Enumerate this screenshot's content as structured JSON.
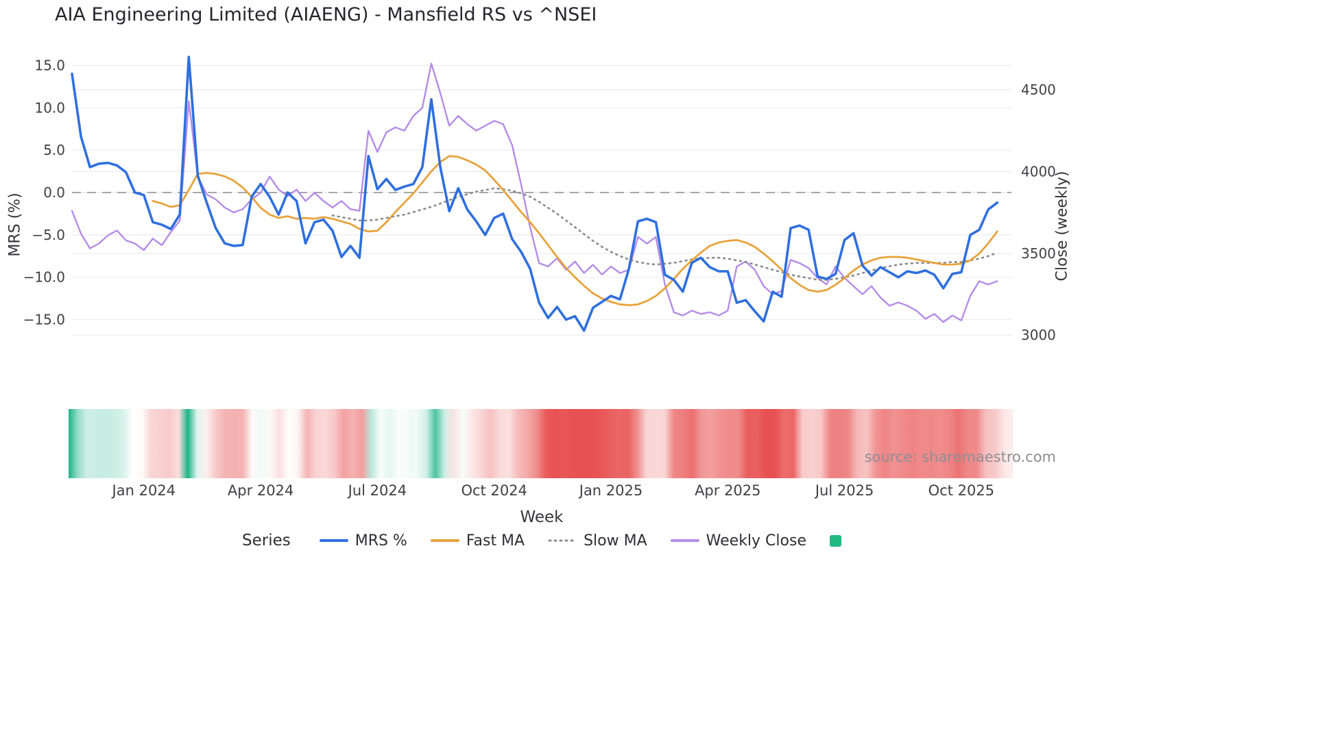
{
  "title": "AIA Engineering Limited (AIAENG) - Mansfield RS vs ^NSEI",
  "source": "source: sharemaestro.com",
  "legend": {
    "title": "Series",
    "items": [
      {
        "label": "MRS %",
        "swatch": "line",
        "color": "#2f6fdf"
      },
      {
        "label": "Fast MA",
        "swatch": "line",
        "color": "#e8a23b"
      },
      {
        "label": "Slow MA",
        "swatch": "dotted-line",
        "color": "#8a8a8a"
      },
      {
        "label": "Weekly Close",
        "swatch": "line",
        "color": "#b48ce8"
      },
      {
        "label": "",
        "swatch": "square",
        "color": "#22b884"
      }
    ]
  },
  "chart_data": {
    "type": "line",
    "title": "AIA Engineering Limited (AIAENG) - Mansfield RS vs ^NSEI",
    "x_axis": {
      "label": "Week",
      "num_points": 104,
      "ticks": [
        {
          "index": 8,
          "label": "Jan 2024"
        },
        {
          "index": 21,
          "label": "Apr 2024"
        },
        {
          "index": 34,
          "label": "Jul 2024"
        },
        {
          "index": 47,
          "label": "Oct 2024"
        },
        {
          "index": 60,
          "label": "Jan 2025"
        },
        {
          "index": 73,
          "label": "Apr 2025"
        },
        {
          "index": 86,
          "label": "Jul 2025"
        },
        {
          "index": 99,
          "label": "Oct 2025"
        }
      ]
    },
    "y_left": {
      "label": "MRS (%)",
      "range": [
        -17.5,
        17.0
      ],
      "ticks": [
        {
          "value": 15,
          "label": "15.0"
        },
        {
          "value": 10,
          "label": "10.0"
        },
        {
          "value": 5,
          "label": "5.0"
        },
        {
          "value": 0,
          "label": "0.0"
        },
        {
          "value": -5,
          "label": "−5.0"
        },
        {
          "value": -10,
          "label": "−10.0"
        },
        {
          "value": -15,
          "label": "−15.0"
        }
      ]
    },
    "y_right": {
      "label": "Close (weekly)",
      "range": [
        2950,
        4700
      ],
      "ticks": [
        {
          "value": 4500,
          "label": "4500"
        },
        {
          "value": 4000,
          "label": "4000"
        },
        {
          "value": 3500,
          "label": "3500"
        },
        {
          "value": 3000,
          "label": "3000"
        }
      ]
    },
    "zero_line": {
      "value": 0,
      "style": "dashed",
      "color": "#9b9ba1"
    },
    "grid": {
      "on": true,
      "color": "#ebebf1"
    },
    "legend_position": "bottom",
    "series": [
      {
        "name": "MRS %",
        "axis": "left",
        "color": "#2f6fdf",
        "style": "solid",
        "values": [
          14.0,
          6.6,
          3.0,
          3.4,
          3.5,
          3.2,
          2.4,
          0.0,
          -0.3,
          -3.5,
          -3.8,
          -4.3,
          -2.6,
          16.0,
          2.0,
          -1.2,
          -4.2,
          -6.0,
          -6.3,
          -6.2,
          -0.5,
          1.0,
          -0.5,
          -2.6,
          0.0,
          -1.0,
          -6.0,
          -3.5,
          -3.2,
          -4.5,
          -7.6,
          -6.3,
          -7.7,
          4.3,
          0.4,
          1.6,
          0.3,
          0.7,
          1.0,
          3.0,
          11.0,
          3.0,
          -2.2,
          0.5,
          -2.0,
          -3.4,
          -5.0,
          -3.0,
          -2.5,
          -5.5,
          -7.0,
          -9.0,
          -13.0,
          -14.8,
          -13.5,
          -15.0,
          -14.6,
          -16.3,
          -13.6,
          -12.9,
          -12.2,
          -12.6,
          -9.0,
          -3.4,
          -3.1,
          -3.5,
          -9.7,
          -10.3,
          -11.7,
          -8.3,
          -7.7,
          -8.8,
          -9.3,
          -9.3,
          -13.0,
          -12.7,
          -14.0,
          -15.2,
          -11.7,
          -12.3,
          -4.2,
          -3.9,
          -4.4,
          -9.9,
          -10.2,
          -9.6,
          -5.6,
          -4.8,
          -8.6,
          -9.8,
          -8.8,
          -9.4,
          -10.0,
          -9.3,
          -9.5,
          -9.2,
          -9.7,
          -11.3,
          -9.6,
          -9.4,
          -5.0,
          -4.4,
          -2.0,
          -1.2
        ]
      },
      {
        "name": "Fast MA",
        "axis": "left",
        "color": "#e8a23b",
        "style": "solid",
        "values": [
          null,
          null,
          null,
          null,
          null,
          null,
          null,
          null,
          null,
          -1.0,
          -1.3,
          -1.7,
          -1.5,
          0.3,
          2.2,
          2.3,
          2.2,
          1.9,
          1.4,
          0.6,
          -0.5,
          -1.8,
          -2.6,
          -3.0,
          -2.8,
          -3.1,
          -3.0,
          -3.1,
          -2.9,
          -3.1,
          -3.4,
          -3.7,
          -4.3,
          -4.6,
          -4.5,
          -3.5,
          -2.3,
          -1.2,
          -0.1,
          1.2,
          2.5,
          3.6,
          4.3,
          4.2,
          3.8,
          3.3,
          2.6,
          1.5,
          0.3,
          -1.0,
          -2.3,
          -3.5,
          -4.8,
          -6.2,
          -7.6,
          -8.9,
          -10.0,
          -11.0,
          -11.9,
          -12.5,
          -12.9,
          -13.2,
          -13.3,
          -13.2,
          -12.8,
          -12.2,
          -11.3,
          -10.2,
          -9.0,
          -8.0,
          -7.1,
          -6.3,
          -5.9,
          -5.7,
          -5.6,
          -5.9,
          -6.4,
          -7.2,
          -8.1,
          -9.1,
          -10.1,
          -10.9,
          -11.5,
          -11.7,
          -11.5,
          -10.9,
          -10.1,
          -9.2,
          -8.5,
          -8.0,
          -7.7,
          -7.6,
          -7.6,
          -7.7,
          -7.9,
          -8.1,
          -8.3,
          -8.5,
          -8.5,
          -8.4,
          -8.0,
          -7.2,
          -6.0,
          -4.6
        ]
      },
      {
        "name": "Slow MA",
        "axis": "left",
        "color": "#8a8a8a",
        "style": "dotted",
        "values": [
          null,
          null,
          null,
          null,
          null,
          null,
          null,
          null,
          null,
          null,
          null,
          null,
          null,
          null,
          null,
          null,
          null,
          null,
          null,
          null,
          null,
          null,
          null,
          null,
          null,
          null,
          null,
          null,
          null,
          -2.7,
          -2.9,
          -3.1,
          -3.3,
          -3.3,
          -3.2,
          -3.0,
          -2.8,
          -2.6,
          -2.3,
          -2.0,
          -1.7,
          -1.3,
          -0.9,
          -0.5,
          -0.2,
          0.1,
          0.3,
          0.5,
          0.4,
          0.2,
          -0.1,
          -0.5,
          -1.1,
          -1.8,
          -2.5,
          -3.3,
          -4.1,
          -4.9,
          -5.7,
          -6.4,
          -7.0,
          -7.5,
          -7.9,
          -8.2,
          -8.4,
          -8.5,
          -8.4,
          -8.3,
          -8.1,
          -7.9,
          -7.8,
          -7.7,
          -7.7,
          -7.8,
          -8.0,
          -8.2,
          -8.5,
          -8.8,
          -9.1,
          -9.4,
          -9.7,
          -9.9,
          -10.1,
          -10.3,
          -10.3,
          -10.2,
          -10.0,
          -9.8,
          -9.5,
          -9.2,
          -8.9,
          -8.7,
          -8.5,
          -8.4,
          -8.3,
          -8.3,
          -8.3,
          -8.3,
          -8.2,
          -8.2,
          -8.0,
          -7.8,
          -7.5,
          -7.1
        ]
      },
      {
        "name": "Weekly Close",
        "axis": "right",
        "color": "#b48ce8",
        "style": "solid",
        "values": [
          3760,
          3620,
          3530,
          3560,
          3610,
          3640,
          3580,
          3560,
          3520,
          3590,
          3550,
          3630,
          3700,
          4430,
          3970,
          3860,
          3830,
          3780,
          3750,
          3770,
          3830,
          3870,
          3970,
          3890,
          3850,
          3890,
          3820,
          3870,
          3820,
          3780,
          3820,
          3770,
          3760,
          4250,
          4120,
          4240,
          4270,
          4250,
          4340,
          4390,
          4660,
          4480,
          4280,
          4340,
          4290,
          4250,
          4280,
          4310,
          4290,
          4160,
          3920,
          3660,
          3440,
          3420,
          3470,
          3400,
          3450,
          3380,
          3430,
          3370,
          3420,
          3380,
          3400,
          3600,
          3560,
          3600,
          3310,
          3140,
          3120,
          3150,
          3130,
          3140,
          3120,
          3150,
          3420,
          3450,
          3400,
          3300,
          3250,
          3270,
          3460,
          3440,
          3410,
          3350,
          3310,
          3420,
          3350,
          3300,
          3250,
          3300,
          3230,
          3180,
          3200,
          3180,
          3150,
          3100,
          3130,
          3080,
          3120,
          3090,
          3240,
          3330,
          3310,
          3330
        ]
      }
    ],
    "heatmap": {
      "encodes": "weekly MRS % magnitude (green positive, red negative)",
      "positive_color": "#1eb486",
      "negative_color": "#e85151",
      "neutral_color": "#ffffff",
      "max_abs": 14
    }
  }
}
